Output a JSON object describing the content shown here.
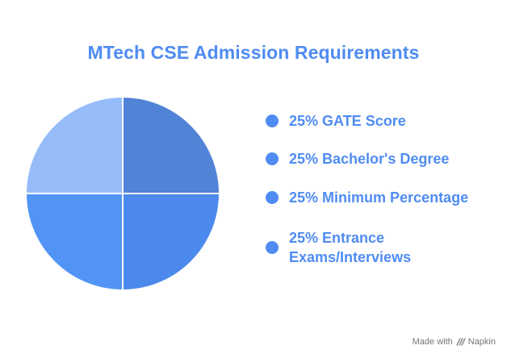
{
  "chart_data": {
    "type": "pie",
    "title": "MTech CSE Admission Requirements",
    "categories": [
      "GATE Score",
      "Bachelor's Degree",
      "Minimum Percentage",
      "Entrance Exams/Interviews"
    ],
    "values": [
      25,
      25,
      25,
      25
    ],
    "slice_colors": [
      "#5183d6",
      "#4c89ec",
      "#5294f5",
      "#96bdfa"
    ],
    "legend_placement": "right",
    "legend": [
      {
        "label": "25% GATE Score",
        "color": "#4f8cf2"
      },
      {
        "label": "25% Bachelor's Degree",
        "color": "#4f8cf2"
      },
      {
        "label": "25% Minimum Percentage",
        "color": "#4f8cf2"
      },
      {
        "label": "25% Entrance Exams/Interviews",
        "color": "#4f8cf2"
      }
    ]
  },
  "footer": {
    "made_with": "Made with",
    "brand": "Napkin",
    "icon": "napkin-logo-icon"
  }
}
